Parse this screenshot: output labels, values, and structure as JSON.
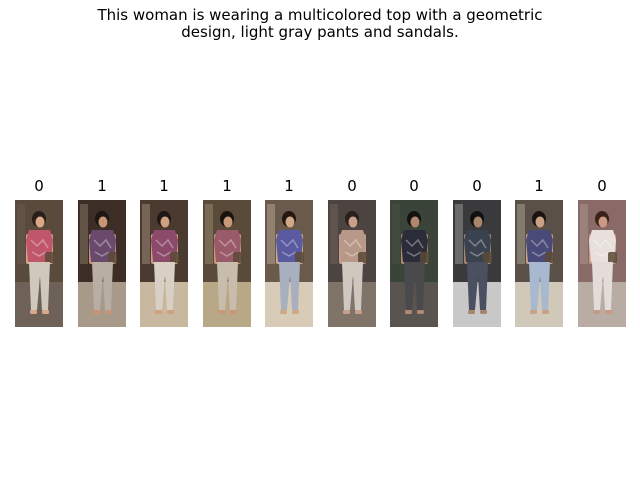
{
  "caption": {
    "line1": "This woman is wearing a multicolored top with a geometric",
    "line2": "design, light gray pants and sandals."
  },
  "gallery": [
    {
      "label": "0",
      "colors": {
        "bg": "#5a4a3c",
        "floor": "#6e6258",
        "top": "#c0566a",
        "pants": "#cfc8bc",
        "skin": "#d9a888",
        "hair": "#2a1e18"
      }
    },
    {
      "label": "1",
      "colors": {
        "bg": "#3c2e26",
        "floor": "#a89a88",
        "top": "#6a4a6c",
        "pants": "#b8aea4",
        "skin": "#c89476",
        "hair": "#1e1612"
      }
    },
    {
      "label": "1",
      "colors": {
        "bg": "#4a3a30",
        "floor": "#c8b8a0",
        "top": "#8c4a6a",
        "pants": "#d8d0c4",
        "skin": "#d0a080",
        "hair": "#201814"
      }
    },
    {
      "label": "1",
      "colors": {
        "bg": "#5a4a3a",
        "floor": "#b8a888",
        "top": "#9a5a6a",
        "pants": "#c8bcac",
        "skin": "#c89878",
        "hair": "#1a1410"
      }
    },
    {
      "label": "1",
      "colors": {
        "bg": "#6a5a4c",
        "floor": "#d8ccb8",
        "top": "#5a5aa0",
        "pants": "#a8b0c0",
        "skin": "#d0a888",
        "hair": "#22180f"
      }
    },
    {
      "label": "0",
      "colors": {
        "bg": "#4c4440",
        "floor": "#807468",
        "top": "#b89888",
        "pants": "#d0c8c0",
        "skin": "#c8a08a",
        "hair": "#2a2018"
      }
    },
    {
      "label": "0",
      "colors": {
        "bg": "#3a4438",
        "floor": "#5a5450",
        "top": "#2a2c3a",
        "pants": "#4a4a4c",
        "skin": "#b08870",
        "hair": "#141210"
      }
    },
    {
      "label": "0",
      "colors": {
        "bg": "#3a3a3c",
        "floor": "#c8c8c8",
        "top": "#3a4250",
        "pants": "#4a5060",
        "skin": "#a8866c",
        "hair": "#121010"
      }
    },
    {
      "label": "1",
      "colors": {
        "bg": "#5a5048",
        "floor": "#d0c8b8",
        "top": "#4a4a78",
        "pants": "#a8b8d0",
        "skin": "#caa086",
        "hair": "#1c1410"
      }
    },
    {
      "label": "0",
      "colors": {
        "bg": "#8a6a66",
        "floor": "#b8aca4",
        "top": "#e8e0dc",
        "pants": "#e4dcd8",
        "skin": "#c89a84",
        "hair": "#3a2218"
      }
    }
  ]
}
